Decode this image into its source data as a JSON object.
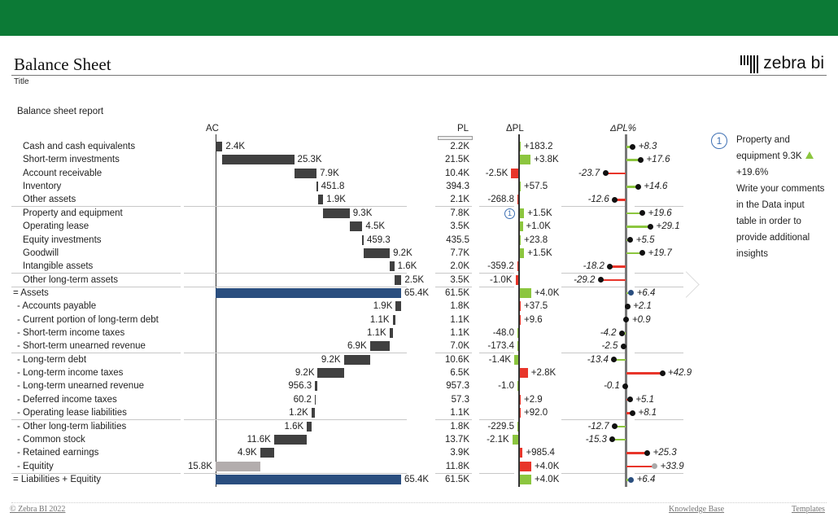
{
  "header": {
    "title": "Balance Sheet",
    "subtitle": "Title",
    "logo_text": "zebra bi"
  },
  "report_title": "Balance sheet report",
  "columns": {
    "ac": "AC",
    "pl": "PL",
    "dpl": "ΔPL",
    "dplp": "ΔPL%"
  },
  "colors": {
    "header_green": "#0c7a36",
    "bar": "#404040",
    "total": "#2a4e7f",
    "good": "#8cc63f",
    "bad": "#e8352a",
    "equity_bar": "#b3adad",
    "marker": "#3d6fb3"
  },
  "rows": [
    {
      "label": "Cash and cash equivalents",
      "kind": "asset",
      "ac": 2.4,
      "ac_label": "2.4K",
      "pl_label": "2.2K",
      "dpl": 0.1832,
      "dpl_label": "+183.2",
      "dplp": 8.3,
      "dplp_label": "+8.3"
    },
    {
      "label": "Short-term investments",
      "kind": "asset",
      "ac": 25.3,
      "ac_label": "25.3K",
      "pl_label": "21.5K",
      "dpl": 3.8,
      "dpl_label": "+3.8K",
      "dplp": 17.6,
      "dplp_label": "+17.6"
    },
    {
      "label": "Account receivable",
      "kind": "asset",
      "ac": 7.9,
      "ac_label": "7.9K",
      "pl_label": "10.4K",
      "dpl": -2.5,
      "dpl_label": "-2.5K",
      "dplp": -23.7,
      "dplp_label": "-23.7"
    },
    {
      "label": "Inventory",
      "kind": "asset",
      "ac": 0.4518,
      "ac_label": "451.8",
      "pl_label": "394.3",
      "dpl": 0.0575,
      "dpl_label": "+57.5",
      "dplp": 14.6,
      "dplp_label": "+14.6"
    },
    {
      "label": "Other assets",
      "kind": "asset",
      "ac": 1.9,
      "ac_label": "1.9K",
      "pl_label": "2.1K",
      "dpl": -0.2688,
      "dpl_label": "-268.8",
      "dplp": -12.6,
      "dplp_label": "-12.6",
      "sep": true
    },
    {
      "label": "Property and equipment",
      "kind": "asset",
      "ac": 9.3,
      "ac_label": "9.3K",
      "pl_label": "7.8K",
      "dpl": 1.5,
      "dpl_label": "+1.5K",
      "dplp": 19.6,
      "dplp_label": "+19.6",
      "marker": "1"
    },
    {
      "label": "Operating lease",
      "kind": "asset",
      "ac": 4.5,
      "ac_label": "4.5K",
      "pl_label": "3.5K",
      "dpl": 1.0,
      "dpl_label": "+1.0K",
      "dplp": 29.1,
      "dplp_label": "+29.1"
    },
    {
      "label": "Equity investments",
      "kind": "asset",
      "ac": 0.4593,
      "ac_label": "459.3",
      "pl_label": "435.5",
      "dpl": 0.0238,
      "dpl_label": "+23.8",
      "dplp": 5.5,
      "dplp_label": "+5.5"
    },
    {
      "label": "Goodwill",
      "kind": "asset",
      "ac": 9.2,
      "ac_label": "9.2K",
      "pl_label": "7.7K",
      "dpl": 1.5,
      "dpl_label": "+1.5K",
      "dplp": 19.7,
      "dplp_label": "+19.7"
    },
    {
      "label": "Intangible assets",
      "kind": "asset",
      "ac": 1.6,
      "ac_label": "1.6K",
      "pl_label": "2.0K",
      "dpl": -0.3592,
      "dpl_label": "-359.2",
      "dplp": -18.2,
      "dplp_label": "-18.2",
      "sep": true
    },
    {
      "label": "Other long-term assets",
      "kind": "asset",
      "ac": 2.5,
      "ac_label": "2.5K",
      "pl_label": "3.5K",
      "dpl": -1.0,
      "dpl_label": "-1.0K",
      "dplp": -29.2,
      "dplp_label": "-29.2",
      "sep": true
    },
    {
      "label": "= Assets",
      "kind": "total",
      "ac": 65.4,
      "ac_label": "65.4K",
      "pl_label": "61.5K",
      "dpl": 4.0,
      "dpl_label": "+4.0K",
      "dplp": 6.4,
      "dplp_label": "+6.4"
    },
    {
      "label": "- Accounts payable",
      "kind": "liability",
      "ac": 1.9,
      "ac_label": "1.9K",
      "pl_label": "1.8K",
      "dpl": 0.0375,
      "dpl_label": "+37.5",
      "dplp": 2.1,
      "dplp_label": "+2.1"
    },
    {
      "label": "- Current portion of long-term debt",
      "kind": "liability",
      "ac": 1.1,
      "ac_label": "1.1K",
      "pl_label": "1.1K",
      "dpl": 0.0096,
      "dpl_label": "+9.6",
      "dplp": 0.9,
      "dplp_label": "+0.9"
    },
    {
      "label": "- Short-term income taxes",
      "kind": "liability",
      "ac": 1.1,
      "ac_label": "1.1K",
      "pl_label": "1.1K",
      "dpl": -0.048,
      "dpl_label": "-48.0",
      "dplp": -4.2,
      "dplp_label": "-4.2"
    },
    {
      "label": "- Short-term unearned revenue",
      "kind": "liability",
      "ac": 6.9,
      "ac_label": "6.9K",
      "pl_label": "7.0K",
      "dpl": -0.1734,
      "dpl_label": "-173.4",
      "dplp": -2.5,
      "dplp_label": "-2.5",
      "sep": true
    },
    {
      "label": "- Long-term debt",
      "kind": "liability",
      "ac": 9.2,
      "ac_label": "9.2K",
      "pl_label": "10.6K",
      "dpl": -1.4,
      "dpl_label": "-1.4K",
      "dplp": -13.4,
      "dplp_label": "-13.4"
    },
    {
      "label": "- Long-term income taxes",
      "kind": "liability",
      "ac": 9.2,
      "ac_label": "9.2K",
      "pl_label": "6.5K",
      "dpl": 2.8,
      "dpl_label": "+2.8K",
      "dplp": 42.9,
      "dplp_label": "+42.9"
    },
    {
      "label": "- Long-term unearned revenue",
      "kind": "liability",
      "ac": 0.9563,
      "ac_label": "956.3",
      "pl_label": "957.3",
      "dpl": -0.001,
      "dpl_label": "-1.0",
      "dplp": -0.1,
      "dplp_label": "-0.1"
    },
    {
      "label": "- Deferred income taxes",
      "kind": "liability",
      "ac": 0.0602,
      "ac_label": "60.2",
      "pl_label": "57.3",
      "dpl": 0.0029,
      "dpl_label": "+2.9",
      "dplp": 5.1,
      "dplp_label": "+5.1"
    },
    {
      "label": "- Operating lease liabilities",
      "kind": "liability",
      "ac": 1.2,
      "ac_label": "1.2K",
      "pl_label": "1.1K",
      "dpl": 0.092,
      "dpl_label": "+92.0",
      "dplp": 8.1,
      "dplp_label": "+8.1",
      "sep": true
    },
    {
      "label": "- Other long-term liabilities",
      "kind": "liability",
      "ac": 1.6,
      "ac_label": "1.6K",
      "pl_label": "1.8K",
      "dpl": -0.2295,
      "dpl_label": "-229.5",
      "dplp": -12.7,
      "dplp_label": "-12.7"
    },
    {
      "label": "- Common stock",
      "kind": "liability",
      "ac": 11.6,
      "ac_label": "11.6K",
      "pl_label": "13.7K",
      "dpl": -2.1,
      "dpl_label": "-2.1K",
      "dplp": -15.3,
      "dplp_label": "-15.3"
    },
    {
      "label": "- Retained earnings",
      "kind": "liability",
      "ac": 4.9,
      "ac_label": "4.9K",
      "pl_label": "3.9K",
      "dpl": 0.9854,
      "dpl_label": "+985.4",
      "dplp": 25.3,
      "dplp_label": "+25.3"
    },
    {
      "label": "- Equitity",
      "kind": "remainder",
      "ac": 15.8,
      "ac_label": "15.8K",
      "pl_label": "11.8K",
      "dpl": 4.0,
      "dpl_label": "+4.0K",
      "dplp": 33.9,
      "dplp_label": "+33.9",
      "sep": true
    },
    {
      "label": "= Liabilities + Equitity",
      "kind": "total",
      "ac": 65.4,
      "ac_label": "65.4K",
      "pl_label": "61.5K",
      "dpl": 4.0,
      "dpl_label": "+4.0K",
      "dplp": 6.4,
      "dplp_label": "+6.4"
    }
  ],
  "comment": {
    "marker": "1",
    "headline": "Property and equipment 9.3K",
    "delta": "+19.6%",
    "body": "Write your comments in the Data input table in order to provide additional insights"
  },
  "footer": {
    "copyright": "© Zebra BI 2022",
    "links": [
      "Knowledge Base",
      "Templates"
    ]
  }
}
